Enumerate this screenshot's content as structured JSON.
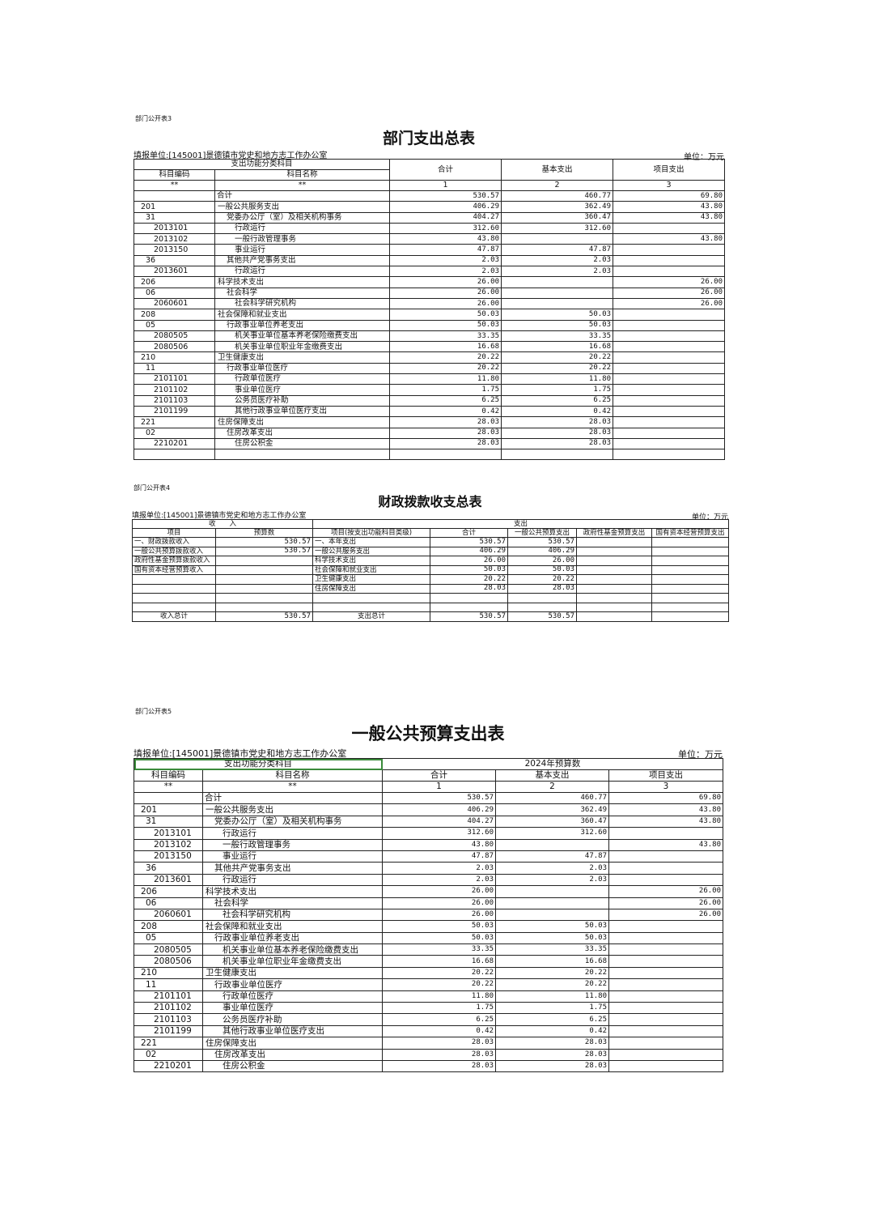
{
  "rows": [
    [
      "",
      "合计",
      0,
      "530.57",
      "460.77",
      "69.80"
    ],
    [
      "201",
      "一般公共服务支出",
      1,
      "406.29",
      "362.49",
      "43.80"
    ],
    [
      "31",
      "党委办公厅（室）及相关机构事务",
      2,
      "404.27",
      "360.47",
      "43.80"
    ],
    [
      "2013101",
      "行政运行",
      3,
      "312.60",
      "312.60",
      ""
    ],
    [
      "2013102",
      "一般行政管理事务",
      3,
      "43.80",
      "",
      "43.80"
    ],
    [
      "2013150",
      "事业运行",
      3,
      "47.87",
      "47.87",
      ""
    ],
    [
      "36",
      "其他共产党事务支出",
      2,
      "2.03",
      "2.03",
      ""
    ],
    [
      "2013601",
      "行政运行",
      3,
      "2.03",
      "2.03",
      ""
    ],
    [
      "206",
      "科学技术支出",
      1,
      "26.00",
      "",
      "26.00"
    ],
    [
      "06",
      "社会科学",
      2,
      "26.00",
      "",
      "26.00"
    ],
    [
      "2060601",
      "社会科学研究机构",
      3,
      "26.00",
      "",
      "26.00"
    ],
    [
      "208",
      "社会保障和就业支出",
      1,
      "50.03",
      "50.03",
      ""
    ],
    [
      "05",
      "行政事业单位养老支出",
      2,
      "50.03",
      "50.03",
      ""
    ],
    [
      "2080505",
      "机关事业单位基本养老保险缴费支出",
      3,
      "33.35",
      "33.35",
      ""
    ],
    [
      "2080506",
      "机关事业单位职业年金缴费支出",
      3,
      "16.68",
      "16.68",
      ""
    ],
    [
      "210",
      "卫生健康支出",
      1,
      "20.22",
      "20.22",
      ""
    ],
    [
      "11",
      "行政事业单位医疗",
      2,
      "20.22",
      "20.22",
      ""
    ],
    [
      "2101101",
      "行政单位医疗",
      3,
      "11.80",
      "11.80",
      ""
    ],
    [
      "2101102",
      "事业单位医疗",
      3,
      "1.75",
      "1.75",
      ""
    ],
    [
      "2101103",
      "公务员医疗补助",
      3,
      "6.25",
      "6.25",
      ""
    ],
    [
      "2101199",
      "其他行政事业单位医疗支出",
      3,
      "0.42",
      "0.42",
      ""
    ],
    [
      "221",
      "住房保障支出",
      1,
      "28.03",
      "28.03",
      ""
    ],
    [
      "02",
      "住房改革支出",
      2,
      "28.03",
      "28.03",
      ""
    ],
    [
      "2210201",
      "住房公积金",
      3,
      "28.03",
      "28.03",
      ""
    ]
  ],
  "sheet1": {
    "tag": "部门公开表3",
    "title": "部门支出总表",
    "unit_left": "填报单位:[145001]景德镇市党史和地方志工作办公室",
    "unit_right": "单位：万元",
    "h_group": "支出功能分类科目",
    "h_code": "科目编码",
    "h_name": "科目名称",
    "h_total": "合计",
    "h_basic": "基本支出",
    "h_project": "项目支出",
    "n_code": "**",
    "n_name": "**",
    "n1": "1",
    "n2": "2",
    "n3": "3"
  },
  "sheet2": {
    "tag": "部门公开表4",
    "title": "财政拨款收支总表",
    "unit_left": "填报单位:[145001]景德镇市党史和地方志工作办公室",
    "unit_right": "单位：万元",
    "h_income": "收　　入",
    "h_expense": "支出",
    "cols": [
      "项目",
      "预算数",
      "项目(按支出功能科目类级)",
      "合计",
      "一般公共预算支出",
      "政府性基金预算支出",
      "国有资本经营预算支出"
    ],
    "rows": [
      [
        "一、财政拨款收入",
        "530.57",
        "一、本年支出",
        "530.57",
        "530.57",
        "",
        ""
      ],
      [
        "  一般公共预算拨款收入",
        "530.57",
        "一般公共服务支出",
        "406.29",
        "406.29",
        "",
        ""
      ],
      [
        "  政府性基金预算拨款收入",
        "",
        "科学技术支出",
        "26.00",
        "26.00",
        "",
        ""
      ],
      [
        "  国有资本经营预算收入",
        "",
        "社会保障和就业支出",
        "50.03",
        "50.03",
        "",
        ""
      ],
      [
        "",
        "",
        "卫生健康支出",
        "20.22",
        "20.22",
        "",
        ""
      ],
      [
        "",
        "",
        "住房保障支出",
        "28.03",
        "28.03",
        "",
        ""
      ],
      [
        "",
        "",
        "",
        "",
        "",
        "",
        ""
      ],
      [
        "",
        "",
        "",
        "",
        "",
        "",
        ""
      ]
    ],
    "total": [
      "收入总计",
      "530.57",
      "支出总计",
      "530.57",
      "530.57",
      "",
      ""
    ]
  },
  "sheet3": {
    "tag": "部门公开表5",
    "title": "一般公共预算支出表",
    "unit_left": "填报单位:[145001]景德镇市党史和地方志工作办公室",
    "unit_right": "单位：万元",
    "h_group": "支出功能分类科目",
    "h_year": "2024年预算数",
    "h_code": "科目编码",
    "h_name": "科目名称",
    "h_total": "合计",
    "h_basic": "基本支出",
    "h_project": "项目支出",
    "n_code": "**",
    "n_name": "**",
    "n1": "1",
    "n2": "2",
    "n3": "3"
  }
}
